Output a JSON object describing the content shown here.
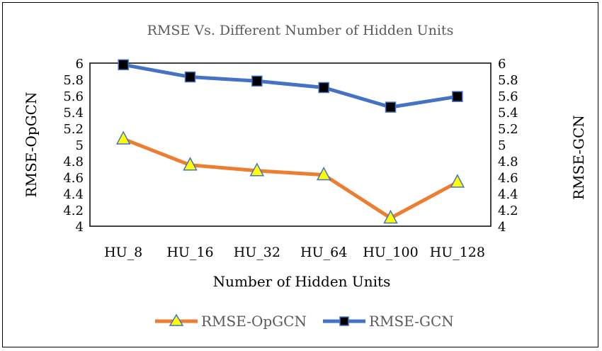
{
  "chart_data": {
    "type": "line",
    "title": "RMSE Vs. Different Number of Hidden Units",
    "xlabel": "Number of Hidden Units",
    "ylabel_left": "RMSE-OpGCN",
    "ylabel_right": "RMSE-GCN",
    "categories": [
      "HU_8",
      "HU_16",
      "HU_32",
      "HU_64",
      "HU_100",
      "HU_128"
    ],
    "ylim_left": [
      4,
      6
    ],
    "ylim_right": [
      4,
      6
    ],
    "yticks": [
      "4",
      "4.2",
      "4.4",
      "4.6",
      "4.8",
      "5",
      "5.2",
      "5.4",
      "5.6",
      "5.8",
      "6"
    ],
    "grid": false,
    "legend_position": "bottom",
    "series": [
      {
        "name": "RMSE-OpGCN",
        "axis": "left",
        "color": "#ED7D31",
        "marker": "triangle",
        "marker_color": "#FFFF00",
        "values": [
          5.07,
          4.75,
          4.68,
          4.63,
          4.1,
          4.54
        ]
      },
      {
        "name": "RMSE-GCN",
        "axis": "right",
        "color": "#4472C4",
        "marker": "square",
        "marker_color": "#000000",
        "values": [
          5.98,
          5.83,
          5.78,
          5.7,
          5.46,
          5.59
        ]
      }
    ]
  }
}
